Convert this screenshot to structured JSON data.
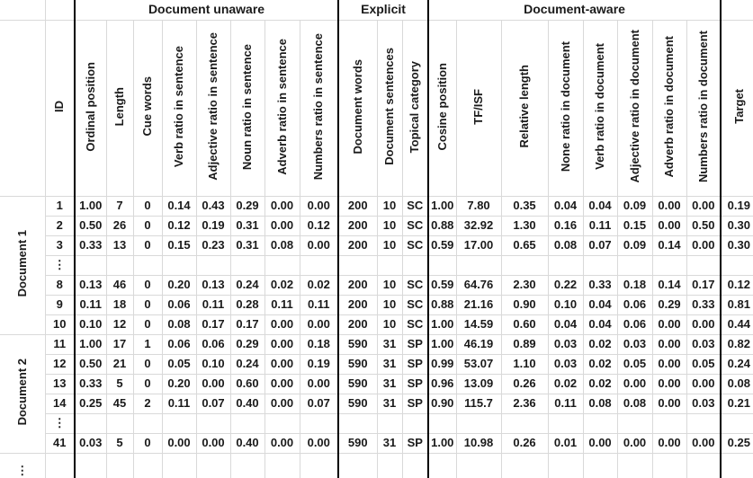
{
  "table": {
    "groups": [
      {
        "label": "Document unaware",
        "span": 8
      },
      {
        "label": "Explicit",
        "span": 3
      },
      {
        "label": "Document-aware",
        "span": 8
      }
    ],
    "columns": [
      "ID",
      "Ordinal position",
      "Length",
      "Cue words",
      "Verb ratio in sentence",
      "Adjective ratio in sentence",
      "Noun ratio in sentence",
      "Adverb ratio in sentence",
      "Numbers ratio in sentence",
      "Document words",
      "Document sentences",
      "Topical category",
      "Cosine position",
      "TF/ISF",
      "Relative length",
      "None ratio in document",
      "Verb ratio in document",
      "Adjective ratio in document",
      "Adverb ratio in document",
      "Numbers ratio in document",
      "Target"
    ],
    "row_groups": [
      {
        "label": "Document 1",
        "rows": [
          [
            "1",
            "1.00",
            "7",
            "0",
            "0.14",
            "0.43",
            "0.29",
            "0.00",
            "0.00",
            "200",
            "10",
            "SC",
            "1.00",
            "7.80",
            "0.35",
            "0.04",
            "0.04",
            "0.09",
            "0.00",
            "0.00",
            "0.19"
          ],
          [
            "2",
            "0.50",
            "26",
            "0",
            "0.12",
            "0.19",
            "0.31",
            "0.00",
            "0.12",
            "200",
            "10",
            "SC",
            "0.88",
            "32.92",
            "1.30",
            "0.16",
            "0.11",
            "0.15",
            "0.00",
            "0.50",
            "0.30"
          ],
          [
            "3",
            "0.33",
            "13",
            "0",
            "0.15",
            "0.23",
            "0.31",
            "0.08",
            "0.00",
            "200",
            "10",
            "SC",
            "0.59",
            "17.00",
            "0.65",
            "0.08",
            "0.07",
            "0.09",
            "0.14",
            "0.00",
            "0.30"
          ],
          [
            "⋮",
            "",
            "",
            "",
            "",
            "",
            "",
            "",
            "",
            "",
            "",
            "",
            "",
            "",
            "",
            "",
            "",
            "",
            "",
            "",
            ""
          ],
          [
            "8",
            "0.13",
            "46",
            "0",
            "0.20",
            "0.13",
            "0.24",
            "0.02",
            "0.02",
            "200",
            "10",
            "SC",
            "0.59",
            "64.76",
            "2.30",
            "0.22",
            "0.33",
            "0.18",
            "0.14",
            "0.17",
            "0.12"
          ],
          [
            "9",
            "0.11",
            "18",
            "0",
            "0.06",
            "0.11",
            "0.28",
            "0.11",
            "0.11",
            "200",
            "10",
            "SC",
            "0.88",
            "21.16",
            "0.90",
            "0.10",
            "0.04",
            "0.06",
            "0.29",
            "0.33",
            "0.81"
          ],
          [
            "10",
            "0.10",
            "12",
            "0",
            "0.08",
            "0.17",
            "0.17",
            "0.00",
            "0.00",
            "200",
            "10",
            "SC",
            "1.00",
            "14.59",
            "0.60",
            "0.04",
            "0.04",
            "0.06",
            "0.00",
            "0.00",
            "0.44"
          ]
        ]
      },
      {
        "label": "Document 2",
        "rows": [
          [
            "11",
            "1.00",
            "17",
            "1",
            "0.06",
            "0.06",
            "0.29",
            "0.00",
            "0.18",
            "590",
            "31",
            "SP",
            "1.00",
            "46.19",
            "0.89",
            "0.03",
            "0.02",
            "0.03",
            "0.00",
            "0.03",
            "0.82"
          ],
          [
            "12",
            "0.50",
            "21",
            "0",
            "0.05",
            "0.10",
            "0.24",
            "0.00",
            "0.19",
            "590",
            "31",
            "SP",
            "0.99",
            "53.07",
            "1.10",
            "0.03",
            "0.02",
            "0.05",
            "0.00",
            "0.05",
            "0.24"
          ],
          [
            "13",
            "0.33",
            "5",
            "0",
            "0.20",
            "0.00",
            "0.60",
            "0.00",
            "0.00",
            "590",
            "31",
            "SP",
            "0.96",
            "13.09",
            "0.26",
            "0.02",
            "0.02",
            "0.00",
            "0.00",
            "0.00",
            "0.08"
          ],
          [
            "14",
            "0.25",
            "45",
            "2",
            "0.11",
            "0.07",
            "0.40",
            "0.00",
            "0.07",
            "590",
            "31",
            "SP",
            "0.90",
            "115.7",
            "2.36",
            "0.11",
            "0.08",
            "0.08",
            "0.00",
            "0.03",
            "0.21"
          ],
          [
            "⋮",
            "",
            "",
            "",
            "",
            "",
            "",
            "",
            "",
            "",
            "",
            "",
            "",
            "",
            "",
            "",
            "",
            "",
            "",
            "",
            ""
          ],
          [
            "41",
            "0.03",
            "5",
            "0",
            "0.00",
            "0.00",
            "0.40",
            "0.00",
            "0.00",
            "590",
            "31",
            "SP",
            "1.00",
            "10.98",
            "0.26",
            "0.01",
            "0.00",
            "0.00",
            "0.00",
            "0.00",
            "0.25"
          ]
        ]
      },
      {
        "label": "⋮",
        "rows": [
          [
            "",
            "",
            "",
            "",
            "",
            "",
            "",
            "",
            "",
            "",
            "",
            "",
            "",
            "",
            "",
            "",
            "",
            "",
            "",
            "",
            ""
          ]
        ]
      }
    ]
  }
}
